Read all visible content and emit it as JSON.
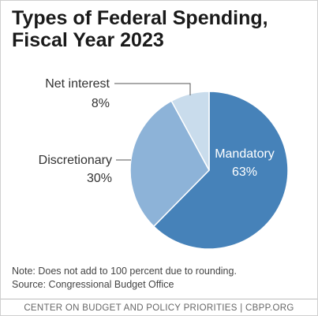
{
  "title": {
    "line1": "Types of Federal Spending,",
    "line2": "Fiscal Year 2023"
  },
  "chart_data": {
    "type": "pie",
    "categories": [
      "Mandatory",
      "Discretionary",
      "Net interest"
    ],
    "values": [
      63,
      30,
      8
    ],
    "value_labels": [
      "63%",
      "30%",
      "8%"
    ],
    "colors": [
      "#4682b9",
      "#8db3d8",
      "#c9dcec"
    ]
  },
  "notes": {
    "note": "Note: Does not add to 100 percent due to rounding.",
    "source": "Source: Congressional Budget Office"
  },
  "footer": {
    "text": "CENTER ON BUDGET AND POLICY PRIORITIES | CBPP.ORG"
  }
}
